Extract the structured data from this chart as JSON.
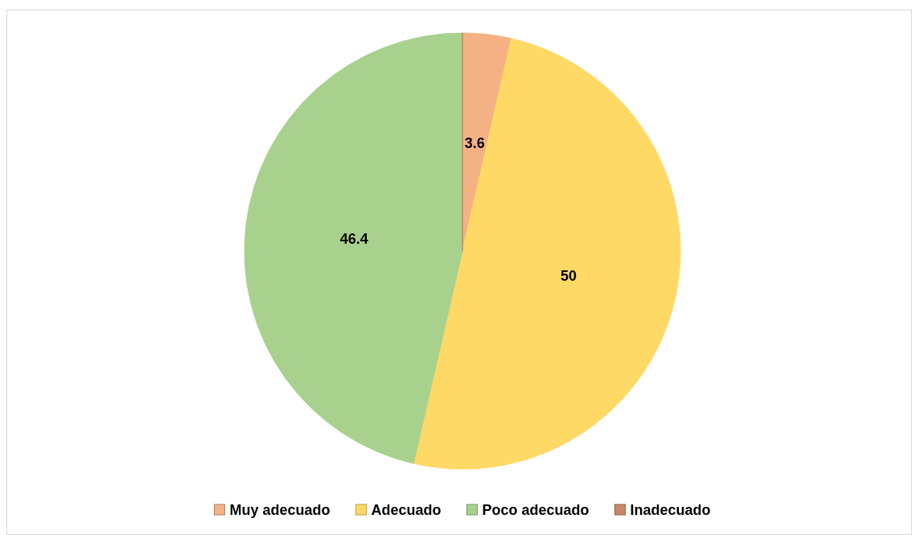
{
  "chart_data": {
    "type": "pie",
    "categories": [
      "Muy adecuado",
      "Adecuado",
      "Poco adecuado",
      "Inadecuado"
    ],
    "values": [
      3.6,
      50,
      46.4,
      0
    ],
    "colors": [
      "#f4b183",
      "#ffd966",
      "#a9d18e",
      "#c5896a"
    ],
    "value_labels": [
      "3.6",
      "50",
      "46.4",
      null
    ],
    "legend": "bottom"
  }
}
